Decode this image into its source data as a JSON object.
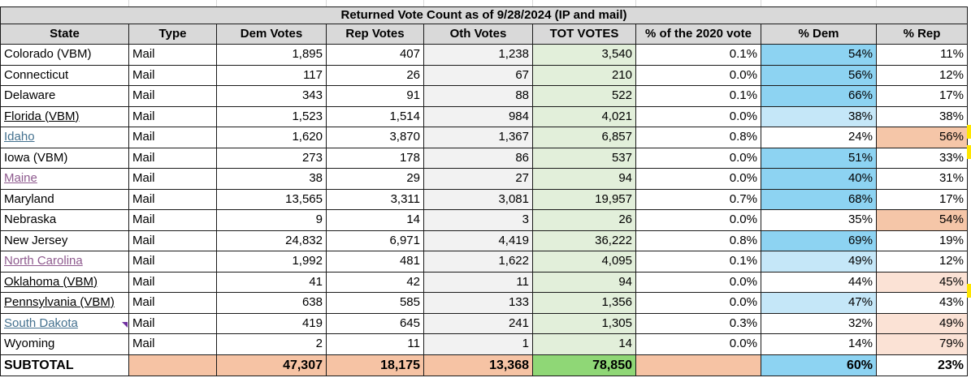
{
  "title": "Returned Vote Count as of 9/28/2024 (IP and mail)",
  "columns": [
    "State",
    "Type",
    "Dem Votes",
    "Rep Votes",
    "Oth Votes",
    "TOT VOTES",
    "% of the 2020 vote",
    "% Dem",
    "% Rep"
  ],
  "rows": [
    {
      "state": "Colorado (VBM)",
      "type": "Mail",
      "dem": "1,895",
      "rep": "407",
      "oth": "1,238",
      "tot": "3,540",
      "pct2020": "0.1%",
      "pdem": "54%",
      "prep": "11%"
    },
    {
      "state": "Connecticut",
      "type": "Mail",
      "dem": "117",
      "rep": "26",
      "oth": "67",
      "tot": "210",
      "pct2020": "0.0%",
      "pdem": "56%",
      "prep": "12%"
    },
    {
      "state": "Delaware",
      "type": "Mail",
      "dem": "343",
      "rep": "91",
      "oth": "88",
      "tot": "522",
      "pct2020": "0.1%",
      "pdem": "66%",
      "prep": "17%"
    },
    {
      "state": "Florida (VBM)",
      "type": "Mail",
      "dem": "1,523",
      "rep": "1,514",
      "oth": "984",
      "tot": "4,021",
      "pct2020": "0.0%",
      "pdem": "38%",
      "prep": "38%"
    },
    {
      "state": "Idaho",
      "type": "Mail",
      "dem": "1,620",
      "rep": "3,870",
      "oth": "1,367",
      "tot": "6,857",
      "pct2020": "0.8%",
      "pdem": "24%",
      "prep": "56%"
    },
    {
      "state": "Iowa (VBM)",
      "type": "Mail",
      "dem": "273",
      "rep": "178",
      "oth": "86",
      "tot": "537",
      "pct2020": "0.0%",
      "pdem": "51%",
      "prep": "33%"
    },
    {
      "state": "Maine",
      "type": "Mail",
      "dem": "38",
      "rep": "29",
      "oth": "27",
      "tot": "94",
      "pct2020": "0.0%",
      "pdem": "40%",
      "prep": "31%"
    },
    {
      "state": "Maryland",
      "type": "Mail",
      "dem": "13,565",
      "rep": "3,311",
      "oth": "3,081",
      "tot": "19,957",
      "pct2020": "0.7%",
      "pdem": "68%",
      "prep": "17%"
    },
    {
      "state": "Nebraska",
      "type": "Mail",
      "dem": "9",
      "rep": "14",
      "oth": "3",
      "tot": "26",
      "pct2020": "0.0%",
      "pdem": "35%",
      "prep": "54%"
    },
    {
      "state": "New Jersey",
      "type": "Mail",
      "dem": "24,832",
      "rep": "6,971",
      "oth": "4,419",
      "tot": "36,222",
      "pct2020": "0.8%",
      "pdem": "69%",
      "prep": "19%"
    },
    {
      "state": "North Carolina",
      "type": "Mail",
      "dem": "1,992",
      "rep": "481",
      "oth": "1,622",
      "tot": "4,095",
      "pct2020": "0.1%",
      "pdem": "49%",
      "prep": "12%"
    },
    {
      "state": "Oklahoma (VBM)",
      "type": "Mail",
      "dem": "41",
      "rep": "42",
      "oth": "11",
      "tot": "94",
      "pct2020": "0.0%",
      "pdem": "44%",
      "prep": "45%"
    },
    {
      "state": "Pennsylvania (VBM)",
      "type": "Mail",
      "dem": "638",
      "rep": "585",
      "oth": "133",
      "tot": "1,356",
      "pct2020": "0.0%",
      "pdem": "47%",
      "prep": "43%"
    },
    {
      "state": "South Dakota",
      "type": "Mail",
      "dem": "419",
      "rep": "645",
      "oth": "241",
      "tot": "1,305",
      "pct2020": "0.3%",
      "pdem": "32%",
      "prep": "49%"
    },
    {
      "state": "Wyoming",
      "type": "Mail",
      "dem": "2",
      "rep": "11",
      "oth": "1",
      "tot": "14",
      "pct2020": "0.0%",
      "pdem": "14%",
      "prep": "79%"
    }
  ],
  "subtotal": {
    "label": "SUBTOTAL",
    "dem": "47,307",
    "rep": "18,175",
    "oth": "13,368",
    "tot": "78,850",
    "pdem": "60%",
    "prep": "23%"
  },
  "colors": {
    "dem_strong": "#8dd3f2",
    "dem_light": "#c5e7f8",
    "rep_strong": "#f5c6a8",
    "rep_light": "#fbe2d5",
    "tot_bg": "#e2efda",
    "subtotal_peach": "#f6c3a4",
    "subtotal_green": "#8fd776"
  }
}
